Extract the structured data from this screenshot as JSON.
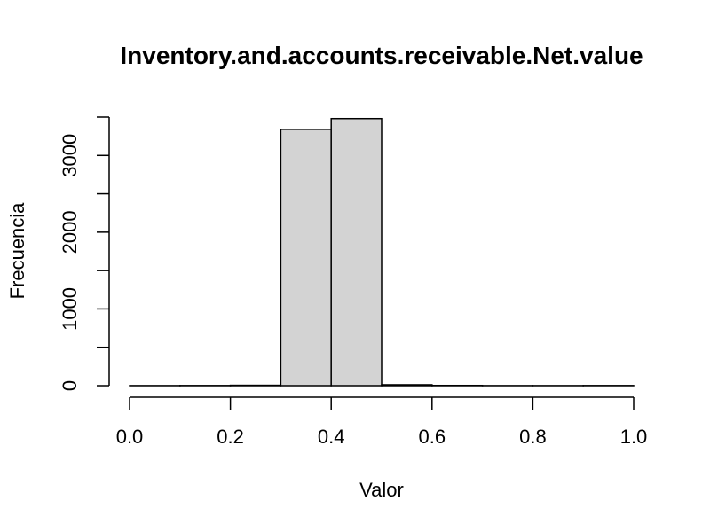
{
  "chart_data": {
    "type": "bar",
    "title": "Inventory.and.accounts.receivable.Net.value",
    "xlabel": "Valor",
    "ylabel": "Frecuencia",
    "bin_edges": [
      0.0,
      0.1,
      0.2,
      0.3,
      0.4,
      0.5,
      0.6,
      0.7,
      0.8,
      0.9,
      1.0
    ],
    "values": [
      1,
      2,
      5,
      3340,
      3480,
      12,
      3,
      1,
      1,
      2
    ],
    "xlim": [
      0.0,
      1.0
    ],
    "ylim": [
      0,
      3500
    ],
    "x_ticks": [
      0.0,
      0.2,
      0.4,
      0.6,
      0.8,
      1.0
    ],
    "x_tick_labels": [
      "0.0",
      "0.2",
      "0.4",
      "0.6",
      "0.8",
      "1.0"
    ],
    "y_ticks": [
      0,
      500,
      1000,
      1500,
      2000,
      2500,
      3000,
      3500
    ],
    "y_tick_labels": [
      "0",
      "",
      "1000",
      "",
      "2000",
      "",
      "3000",
      ""
    ],
    "bar_fill": "#d3d3d3",
    "grid": false
  }
}
